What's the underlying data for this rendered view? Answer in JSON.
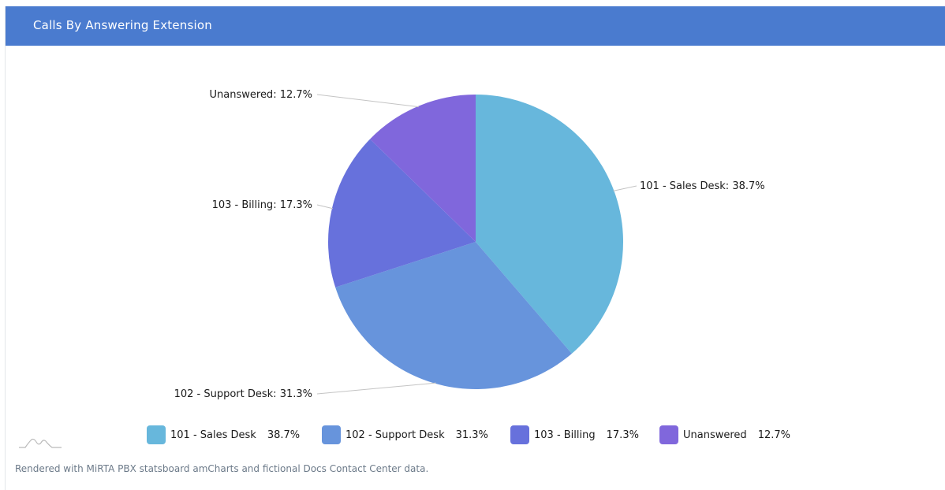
{
  "panel": {
    "title": "Calls By Answering Extension",
    "header_color": "#4a7bcf"
  },
  "chart_data": {
    "type": "pie",
    "title": "",
    "slices": [
      {
        "label": "101 - Sales Desk",
        "value": 38.7,
        "color": "#67b7dc"
      },
      {
        "label": "102 - Support Desk",
        "value": 31.3,
        "color": "#6794dc"
      },
      {
        "label": "103 - Billing",
        "value": 17.3,
        "color": "#6771dc"
      },
      {
        "label": "Unanswered",
        "value": 12.7,
        "color": "#8067dc"
      }
    ],
    "slice_labels": [
      "101 - Sales Desk: 38.7%",
      "102 - Support Desk: 31.3%",
      "103 - Billing: 17.3%",
      "Unanswered: 12.7%"
    ],
    "legend_values": [
      "38.7%",
      "31.3%",
      "17.3%",
      "12.7%"
    ],
    "legend_position": "bottom"
  },
  "footer": {
    "note": "Rendered with MiRTA PBX statsboard amCharts and fictional Docs Contact Center data.",
    "logo_icon": "amcharts-logo-icon"
  }
}
